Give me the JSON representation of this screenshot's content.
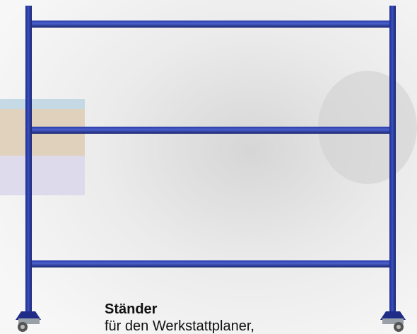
{
  "caption": {
    "title": "Ständer",
    "text": "für den Werkstattplaner,"
  }
}
